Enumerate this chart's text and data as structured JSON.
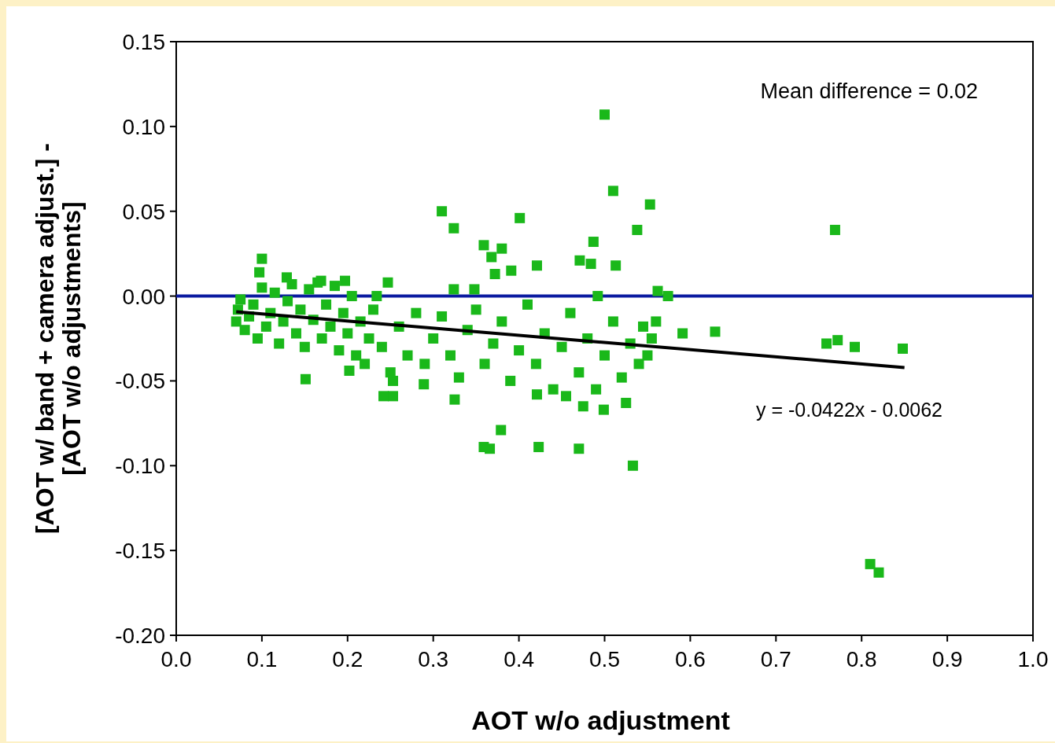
{
  "chart_data": {
    "type": "scatter",
    "xlabel": "AOT w/o adjustment",
    "ylabel": "[AOT w/ band + camera adjust.] -\n[AOT w/o adjustments]",
    "xlim": [
      0,
      1
    ],
    "ylim": [
      -0.2,
      0.15
    ],
    "xticks": [
      {
        "value": 0,
        "label": "0.0"
      },
      0.1,
      0.2,
      0.3,
      0.4,
      0.5,
      0.6,
      0.7,
      0.8,
      0.9,
      {
        "value": 1,
        "label": "1.0"
      }
    ],
    "yticks": [
      {
        "value": -0.2,
        "label": "-0.20"
      },
      -0.15,
      {
        "value": -0.1,
        "label": "-0.10"
      },
      -0.05,
      {
        "value": 0,
        "label": "0.00"
      },
      0.05,
      {
        "value": 0.1,
        "label": "0.10"
      },
      0.15
    ],
    "grid": false,
    "ref_lines": [
      {
        "axis": "y",
        "value": 0,
        "color": "#0a1aa0"
      }
    ],
    "annotations": [
      "Mean difference = 0.02",
      "y = -0.0422x - 0.0062"
    ],
    "series": [
      {
        "color": "#1ab81a",
        "marker": "square",
        "x": [
          0.5,
          0.51,
          0.553,
          0.31,
          0.401,
          0.324,
          0.538,
          0.769,
          0.487,
          0.359,
          0.38,
          0.1,
          0.368,
          0.471,
          0.484,
          0.421,
          0.513,
          0.391,
          0.372,
          0.247,
          0.197,
          0.097,
          0.129,
          0.169,
          0.324,
          0.348,
          0.562,
          0.574,
          0.492,
          0.234,
          0.759,
          0.772,
          0.792,
          0.848,
          0.591,
          0.629,
          0.151,
          0.202,
          0.242,
          0.253,
          0.289,
          0.325,
          0.379,
          0.359,
          0.366,
          0.423,
          0.47,
          0.533,
          0.81,
          0.82,
          0.421,
          0.455,
          0.475,
          0.499,
          0.525,
          0.253,
          0.07,
          0.072,
          0.075,
          0.08,
          0.085,
          0.09,
          0.095,
          0.1,
          0.105,
          0.11,
          0.115,
          0.12,
          0.125,
          0.13,
          0.135,
          0.14,
          0.145,
          0.15,
          0.155,
          0.16,
          0.165,
          0.17,
          0.175,
          0.18,
          0.185,
          0.19,
          0.195,
          0.2,
          0.205,
          0.21,
          0.215,
          0.22,
          0.225,
          0.23,
          0.24,
          0.25,
          0.26,
          0.27,
          0.28,
          0.29,
          0.3,
          0.31,
          0.32,
          0.33,
          0.34,
          0.35,
          0.36,
          0.37,
          0.38,
          0.39,
          0.4,
          0.41,
          0.42,
          0.43,
          0.44,
          0.45,
          0.46,
          0.47,
          0.48,
          0.49,
          0.5,
          0.51,
          0.52,
          0.53,
          0.54,
          0.545,
          0.55,
          0.555,
          0.56
        ],
        "values": [
          0.107,
          0.062,
          0.054,
          0.05,
          0.046,
          0.04,
          0.039,
          0.039,
          0.032,
          0.03,
          0.028,
          0.022,
          0.023,
          0.021,
          0.019,
          0.018,
          0.018,
          0.015,
          0.013,
          0.008,
          0.009,
          0.014,
          0.011,
          0.009,
          0.004,
          0.004,
          0.003,
          0,
          0,
          0,
          -0.028,
          -0.026,
          -0.03,
          -0.031,
          -0.022,
          -0.021,
          -0.049,
          -0.044,
          -0.059,
          -0.059,
          -0.052,
          -0.061,
          -0.079,
          -0.089,
          -0.09,
          -0.089,
          -0.09,
          -0.1,
          -0.158,
          -0.163,
          -0.058,
          -0.059,
          -0.065,
          -0.067,
          -0.063,
          -0.05,
          -0.015,
          -0.008,
          -0.002,
          -0.02,
          -0.012,
          -0.005,
          -0.025,
          0.005,
          -0.018,
          -0.01,
          0.002,
          -0.028,
          -0.015,
          -0.003,
          0.007,
          -0.022,
          -0.008,
          -0.03,
          0.004,
          -0.014,
          0.008,
          -0.025,
          -0.005,
          -0.018,
          0.006,
          -0.032,
          -0.01,
          -0.022,
          0,
          -0.035,
          -0.015,
          -0.04,
          -0.025,
          -0.008,
          -0.03,
          -0.045,
          -0.018,
          -0.035,
          -0.01,
          -0.04,
          -0.025,
          -0.012,
          -0.035,
          -0.048,
          -0.02,
          -0.008,
          -0.04,
          -0.028,
          -0.015,
          -0.05,
          -0.032,
          -0.005,
          -0.04,
          -0.022,
          -0.055,
          -0.03,
          -0.01,
          -0.045,
          -0.025,
          -0.055,
          -0.035,
          -0.015,
          -0.048,
          -0.028,
          -0.04,
          -0.018,
          -0.035,
          -0.025,
          -0.015
        ]
      },
      {
        "type": "line",
        "color": "#000000",
        "x": [
          0.07,
          0.85
        ],
        "values": [
          -0.0092,
          -0.0421
        ]
      }
    ]
  }
}
